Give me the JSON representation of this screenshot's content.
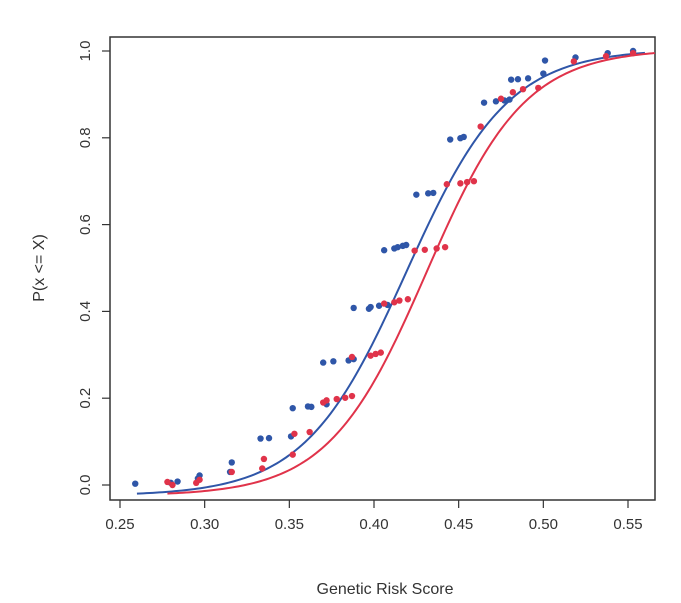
{
  "chart_data": {
    "type": "scatter",
    "title": "",
    "xlabel": "Genetic Risk Score",
    "ylabel": "P(x <= X)",
    "xlim": [
      0.25,
      0.57
    ],
    "ylim": [
      -0.03,
      1.03
    ],
    "xticks": [
      0.25,
      0.3,
      0.35,
      0.4,
      0.45,
      0.5,
      0.55
    ],
    "xtick_labels": [
      "0.25",
      "0.30",
      "0.35",
      "0.40",
      "0.45",
      "0.50",
      "0.55"
    ],
    "yticks": [
      0.0,
      0.2,
      0.4,
      0.6,
      0.8,
      1.0
    ],
    "ytick_labels": [
      "0.0",
      "0.2",
      "0.4",
      "0.6",
      "0.8",
      "1.0"
    ],
    "grid": false,
    "legend": "none",
    "series": [
      {
        "name": "blue",
        "color": "#2f56a8",
        "points": [
          [
            0.259,
            0.003
          ],
          [
            0.28,
            0.005
          ],
          [
            0.284,
            0.008
          ],
          [
            0.296,
            0.015
          ],
          [
            0.297,
            0.022
          ],
          [
            0.315,
            0.03
          ],
          [
            0.316,
            0.052
          ],
          [
            0.333,
            0.107
          ],
          [
            0.338,
            0.108
          ],
          [
            0.351,
            0.112
          ],
          [
            0.352,
            0.177
          ],
          [
            0.361,
            0.181
          ],
          [
            0.363,
            0.18
          ],
          [
            0.37,
            0.282
          ],
          [
            0.372,
            0.186
          ],
          [
            0.376,
            0.285
          ],
          [
            0.385,
            0.287
          ],
          [
            0.388,
            0.29
          ],
          [
            0.388,
            0.408
          ],
          [
            0.397,
            0.406
          ],
          [
            0.398,
            0.41
          ],
          [
            0.403,
            0.413
          ],
          [
            0.406,
            0.541
          ],
          [
            0.408,
            0.415
          ],
          [
            0.412,
            0.545
          ],
          [
            0.414,
            0.548
          ],
          [
            0.417,
            0.551
          ],
          [
            0.419,
            0.553
          ],
          [
            0.425,
            0.669
          ],
          [
            0.432,
            0.672
          ],
          [
            0.435,
            0.673
          ],
          [
            0.445,
            0.796
          ],
          [
            0.451,
            0.799
          ],
          [
            0.453,
            0.802
          ],
          [
            0.465,
            0.881
          ],
          [
            0.472,
            0.884
          ],
          [
            0.477,
            0.886
          ],
          [
            0.48,
            0.888
          ],
          [
            0.481,
            0.934
          ],
          [
            0.485,
            0.935
          ],
          [
            0.491,
            0.937
          ],
          [
            0.5,
            0.948
          ],
          [
            0.501,
            0.978
          ],
          [
            0.519,
            0.985
          ],
          [
            0.538,
            0.995
          ],
          [
            0.553,
            1.0
          ]
        ],
        "curve": {
          "midpoint": 0.419,
          "scale": 0.03,
          "x_range": [
            0.26,
            0.56
          ]
        }
      },
      {
        "name": "red",
        "color": "#e0334a",
        "points": [
          [
            0.278,
            0.007
          ],
          [
            0.281,
            0.0
          ],
          [
            0.295,
            0.005
          ],
          [
            0.297,
            0.012
          ],
          [
            0.316,
            0.03
          ],
          [
            0.334,
            0.038
          ],
          [
            0.335,
            0.06
          ],
          [
            0.352,
            0.07
          ],
          [
            0.353,
            0.118
          ],
          [
            0.362,
            0.122
          ],
          [
            0.37,
            0.19
          ],
          [
            0.372,
            0.195
          ],
          [
            0.378,
            0.198
          ],
          [
            0.383,
            0.201
          ],
          [
            0.387,
            0.205
          ],
          [
            0.387,
            0.295
          ],
          [
            0.398,
            0.298
          ],
          [
            0.401,
            0.302
          ],
          [
            0.404,
            0.305
          ],
          [
            0.406,
            0.418
          ],
          [
            0.412,
            0.421
          ],
          [
            0.415,
            0.425
          ],
          [
            0.42,
            0.428
          ],
          [
            0.424,
            0.54
          ],
          [
            0.43,
            0.542
          ],
          [
            0.437,
            0.545
          ],
          [
            0.442,
            0.548
          ],
          [
            0.443,
            0.693
          ],
          [
            0.451,
            0.695
          ],
          [
            0.455,
            0.698
          ],
          [
            0.459,
            0.7
          ],
          [
            0.463,
            0.826
          ],
          [
            0.475,
            0.89
          ],
          [
            0.482,
            0.905
          ],
          [
            0.488,
            0.912
          ],
          [
            0.497,
            0.915
          ],
          [
            0.518,
            0.976
          ],
          [
            0.537,
            0.988
          ],
          [
            0.553,
            0.995
          ]
        ],
        "curve": {
          "midpoint": 0.431,
          "scale": 0.029,
          "x_range": [
            0.278,
            0.57
          ]
        }
      }
    ]
  }
}
